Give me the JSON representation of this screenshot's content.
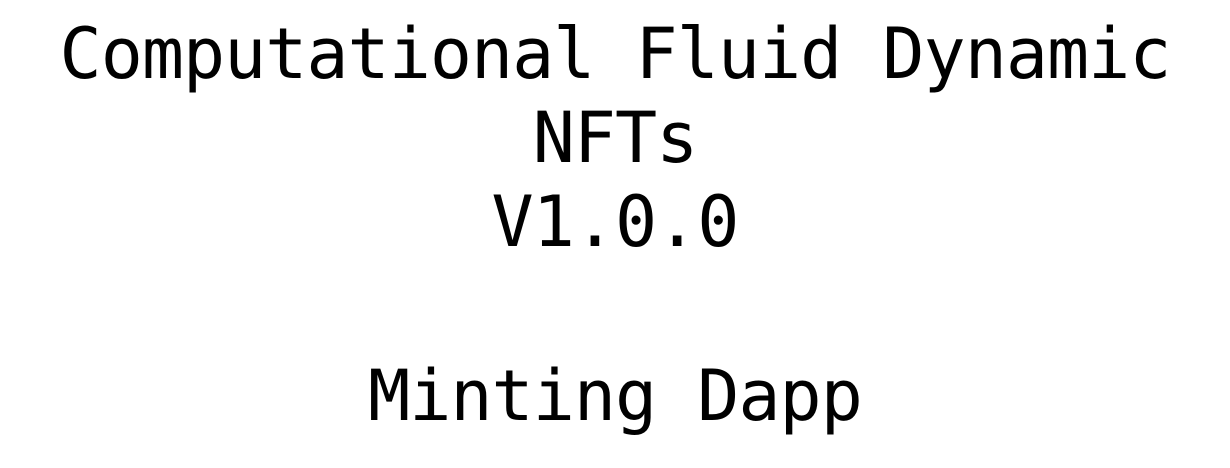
{
  "heading": {
    "line1": "Computational Fluid Dynamic",
    "line2": "NFTs",
    "version": "V1.0.0"
  },
  "subheading": "Minting Dapp"
}
